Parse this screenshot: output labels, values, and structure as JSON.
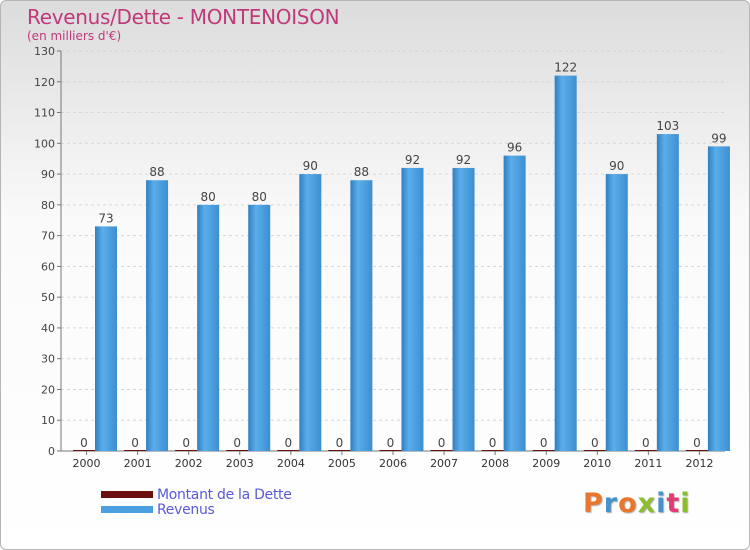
{
  "header": {
    "title": "Revenus/Dette - MONTENOISON",
    "subtitle": "(en milliers d'€)"
  },
  "legend": [
    {
      "label": "Montant de la Dette",
      "color": "#6b0f0f"
    },
    {
      "label": "Revenus",
      "color": "#4a9fe0"
    }
  ],
  "logo": {
    "text": "Proxiti",
    "colors": [
      "#e8762d",
      "#4a90c9",
      "#e8762d",
      "#8bbd2c",
      "#4a90c9",
      "#e23a72",
      "#8bbd2c"
    ]
  },
  "chart_data": {
    "type": "bar",
    "categories": [
      "2000",
      "2001",
      "2002",
      "2003",
      "2004",
      "2005",
      "2006",
      "2007",
      "2008",
      "2009",
      "2010",
      "2011",
      "2012"
    ],
    "series": [
      {
        "name": "Montant de la Dette",
        "values": [
          0,
          0,
          0,
          0,
          0,
          0,
          0,
          0,
          0,
          0,
          0,
          0,
          0
        ],
        "color": "#6b0f0f"
      },
      {
        "name": "Revenus",
        "values": [
          73,
          88,
          80,
          80,
          90,
          88,
          92,
          92,
          96,
          122,
          90,
          103,
          99
        ],
        "color": "#4a9fe0"
      }
    ],
    "ylim": [
      0,
      130
    ],
    "yticks": [
      0,
      10,
      20,
      30,
      40,
      50,
      60,
      70,
      80,
      90,
      100,
      110,
      120,
      130
    ],
    "grid": true
  }
}
